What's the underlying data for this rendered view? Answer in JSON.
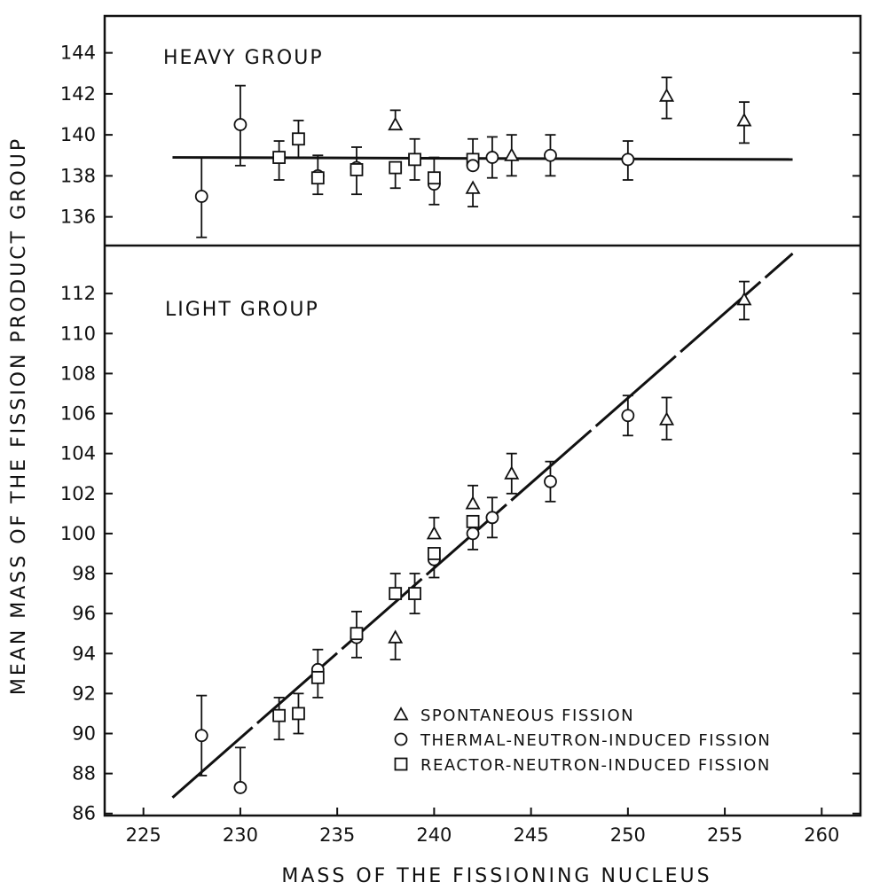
{
  "chart_data": {
    "type": "scatter",
    "xlabel": "MASS OF THE FISSIONING NUCLEUS",
    "ylabel": "MEAN MASS OF THE FISSION PRODUCT GROUP",
    "xlim": [
      223,
      262
    ],
    "x_ticks": [
      225,
      230,
      235,
      240,
      245,
      250,
      255,
      260
    ],
    "colors": {
      "ink": "#111111",
      "background": "#ffffff"
    },
    "grid": false,
    "legend_position": "bottom-right",
    "legend": [
      {
        "symbol": "triangle",
        "label": "SPONTANEOUS FISSION"
      },
      {
        "symbol": "circle",
        "label": "THERMAL-NEUTRON-INDUCED FISSION"
      },
      {
        "symbol": "square",
        "label": "REACTOR-NEUTRON-INDUCED FISSION"
      }
    ],
    "panels": [
      {
        "id": "heavy",
        "label": "HEAVY GROUP",
        "ylim": [
          134.6,
          145.8
        ],
        "y_ticks": [
          136,
          138,
          140,
          142,
          144
        ],
        "fit_line": {
          "x": [
            226.5,
            258.5
          ],
          "y": [
            138.9,
            138.8
          ]
        },
        "points": [
          {
            "x": 228,
            "y": 137.0,
            "err": [
              2.0,
              1.9
            ],
            "symbol": "circle"
          },
          {
            "x": 230,
            "y": 140.5,
            "err": [
              2.0,
              1.9
            ],
            "symbol": "circle"
          },
          {
            "x": 232,
            "y": 138.9,
            "err": [
              1.1,
              0.8
            ],
            "symbol": "square"
          },
          {
            "x": 233,
            "y": 139.8,
            "err": [
              0.9,
              0.9
            ],
            "symbol": "square"
          },
          {
            "x": 234,
            "y": 138.0,
            "err": [
              0.9,
              1.0
            ],
            "symbol": "circle"
          },
          {
            "x": 234,
            "y": 137.9,
            "err": [
              0,
              0
            ],
            "symbol": "square"
          },
          {
            "x": 236,
            "y": 138.4,
            "err": [
              1.3,
              1.0
            ],
            "symbol": "circle"
          },
          {
            "x": 236,
            "y": 138.3,
            "err": [
              0,
              0
            ],
            "symbol": "square"
          },
          {
            "x": 238,
            "y": 138.4,
            "err": [
              1.0,
              0
            ],
            "symbol": "square"
          },
          {
            "x": 238,
            "y": 140.5,
            "err": [
              0,
              0.7
            ],
            "symbol": "triangle"
          },
          {
            "x": 239,
            "y": 138.8,
            "err": [
              1.0,
              1.0
            ],
            "symbol": "square"
          },
          {
            "x": 240,
            "y": 137.6,
            "err": [
              1.0,
              0
            ],
            "symbol": "circle"
          },
          {
            "x": 240,
            "y": 137.9,
            "err": [
              0,
              1.0
            ],
            "symbol": "square"
          },
          {
            "x": 242,
            "y": 138.8,
            "err": [
              0,
              1.0
            ],
            "symbol": "square"
          },
          {
            "x": 242,
            "y": 138.5,
            "err": [
              0,
              0
            ],
            "symbol": "circle"
          },
          {
            "x": 242,
            "y": 137.4,
            "err": [
              0.9,
              0
            ],
            "symbol": "triangle"
          },
          {
            "x": 243,
            "y": 138.9,
            "err": [
              1.0,
              1.0
            ],
            "symbol": "circle"
          },
          {
            "x": 244,
            "y": 139.0,
            "err": [
              1.0,
              1.0
            ],
            "symbol": "triangle"
          },
          {
            "x": 246,
            "y": 139.0,
            "err": [
              1.0,
              1.0
            ],
            "symbol": "circle"
          },
          {
            "x": 250,
            "y": 138.8,
            "err": [
              1.0,
              0.9
            ],
            "symbol": "circle"
          },
          {
            "x": 252,
            "y": 141.9,
            "err": [
              1.1,
              0.9
            ],
            "symbol": "triangle"
          },
          {
            "x": 256,
            "y": 140.7,
            "err": [
              1.1,
              0.9
            ],
            "symbol": "triangle"
          }
        ]
      },
      {
        "id": "light",
        "label": "LIGHT GROUP",
        "ylim": [
          85.9,
          114.4
        ],
        "y_ticks": [
          86,
          88,
          90,
          92,
          94,
          96,
          98,
          100,
          102,
          104,
          106,
          108,
          110,
          112
        ],
        "fit_line": {
          "x": [
            226.5,
            258.5
          ],
          "y": [
            86.8,
            114.0
          ]
        },
        "points": [
          {
            "x": 228,
            "y": 89.9,
            "err": [
              2.0,
              2.0
            ],
            "symbol": "circle"
          },
          {
            "x": 230,
            "y": 87.3,
            "err": [
              0,
              2.0
            ],
            "symbol": "circle"
          },
          {
            "x": 232,
            "y": 90.9,
            "err": [
              1.2,
              0.9
            ],
            "symbol": "square"
          },
          {
            "x": 233,
            "y": 91.0,
            "err": [
              1.0,
              1.0
            ],
            "symbol": "square"
          },
          {
            "x": 234,
            "y": 93.2,
            "err": [
              0,
              1.0
            ],
            "symbol": "circle"
          },
          {
            "x": 234,
            "y": 92.8,
            "err": [
              1.0,
              0
            ],
            "symbol": "square"
          },
          {
            "x": 236,
            "y": 94.8,
            "err": [
              1.0,
              0
            ],
            "symbol": "circle"
          },
          {
            "x": 236,
            "y": 95.0,
            "err": [
              0,
              1.1
            ],
            "symbol": "square"
          },
          {
            "x": 238,
            "y": 97.0,
            "err": [
              0,
              1.0
            ],
            "symbol": "square"
          },
          {
            "x": 238,
            "y": 94.8,
            "err": [
              1.1,
              0
            ],
            "symbol": "triangle"
          },
          {
            "x": 239,
            "y": 97.0,
            "err": [
              1.0,
              1.0
            ],
            "symbol": "square"
          },
          {
            "x": 240,
            "y": 98.7,
            "err": [
              0.9,
              0
            ],
            "symbol": "circle"
          },
          {
            "x": 240,
            "y": 99.0,
            "err": [
              0,
              0
            ],
            "symbol": "square"
          },
          {
            "x": 240,
            "y": 100.0,
            "err": [
              0,
              0.8
            ],
            "symbol": "triangle"
          },
          {
            "x": 242,
            "y": 100.0,
            "err": [
              0.8,
              0
            ],
            "symbol": "circle"
          },
          {
            "x": 242,
            "y": 100.6,
            "err": [
              0,
              0
            ],
            "symbol": "square"
          },
          {
            "x": 242,
            "y": 101.5,
            "err": [
              0,
              0.9
            ],
            "symbol": "triangle"
          },
          {
            "x": 243,
            "y": 100.8,
            "err": [
              1.0,
              1.0
            ],
            "symbol": "circle"
          },
          {
            "x": 244,
            "y": 103.0,
            "err": [
              1.0,
              1.0
            ],
            "symbol": "triangle"
          },
          {
            "x": 246,
            "y": 102.6,
            "err": [
              1.0,
              1.0
            ],
            "symbol": "circle"
          },
          {
            "x": 250,
            "y": 105.9,
            "err": [
              1.0,
              1.0
            ],
            "symbol": "circle"
          },
          {
            "x": 252,
            "y": 105.7,
            "err": [
              1.0,
              1.1
            ],
            "symbol": "triangle"
          },
          {
            "x": 256,
            "y": 111.7,
            "err": [
              1.0,
              0.9
            ],
            "symbol": "triangle"
          }
        ]
      }
    ]
  }
}
